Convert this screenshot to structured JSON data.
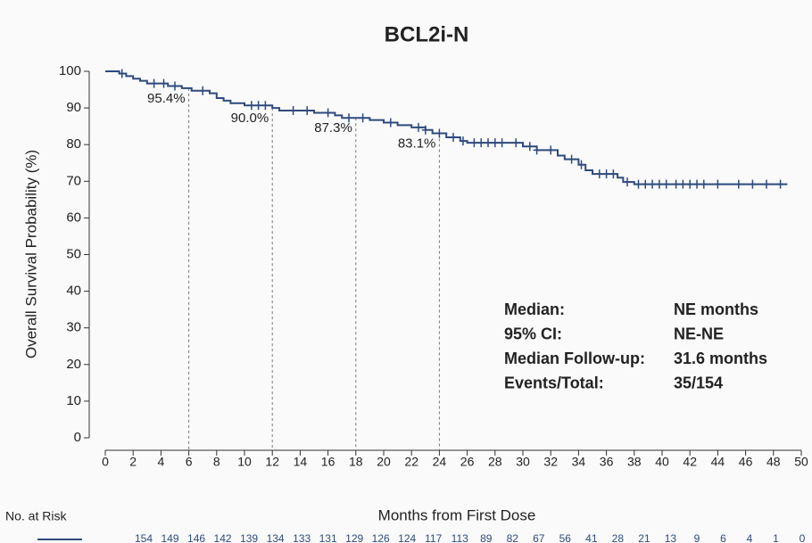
{
  "chart_data": {
    "type": "step",
    "title": "BCL2i-N",
    "y_label": "Overall Survival Probability (%)",
    "x_label": "Months from First Dose",
    "color": "#2e4a7d",
    "x": [
      0,
      1,
      1.5,
      2,
      2.5,
      3,
      4.5,
      5.5,
      6.2,
      7.5,
      8,
      8.5,
      9,
      10,
      12,
      12.5,
      15,
      16.5,
      17,
      19,
      20,
      21,
      22,
      23,
      23.5,
      24.5,
      25.5,
      26,
      29,
      30,
      31,
      32.5,
      33,
      34,
      34.5,
      35,
      36.8,
      37.2,
      38,
      49
    ],
    "values": [
      100,
      99.4,
      98.7,
      98,
      97.4,
      96.7,
      96,
      95.4,
      94.7,
      94,
      92.7,
      92,
      91.3,
      90.7,
      90,
      89.3,
      88.7,
      88,
      87.3,
      86.7,
      86,
      85.3,
      84.7,
      84,
      83.1,
      82,
      81,
      80.5,
      80.5,
      79.5,
      78.5,
      77,
      76,
      74.5,
      73,
      72,
      71,
      69.8,
      69.2,
      69.2
    ],
    "censor_times": [
      1.2,
      3.5,
      4.2,
      5,
      7,
      10.5,
      11,
      11.5,
      13.5,
      14.5,
      16,
      17.5,
      18.5,
      20.5,
      22.5,
      23,
      24,
      25,
      25.7,
      26.5,
      27,
      27.5,
      28,
      28.5,
      29.5,
      30.5,
      31,
      32,
      33.5,
      34.2,
      35.5,
      36,
      36.5,
      37.5,
      38.3,
      38.8,
      39.3,
      39.8,
      40.3,
      41,
      41.5,
      42,
      42.5,
      43,
      44,
      45.5,
      46.5,
      47.5,
      48.5
    ],
    "xlim": [
      0,
      50
    ],
    "xticks": [
      0,
      2,
      4,
      6,
      8,
      10,
      12,
      14,
      16,
      18,
      20,
      22,
      24,
      26,
      28,
      30,
      32,
      34,
      36,
      38,
      40,
      42,
      44,
      46,
      48,
      50
    ],
    "ylim": [
      0,
      100
    ],
    "yticks": [
      0,
      10,
      20,
      30,
      40,
      50,
      60,
      70,
      80,
      90,
      100
    ],
    "landmarks": [
      {
        "x": 6,
        "value": 95.4,
        "label": "95.4%"
      },
      {
        "x": 12,
        "value": 90.0,
        "label": "90.0%"
      },
      {
        "x": 18,
        "value": 87.3,
        "label": "87.3%"
      },
      {
        "x": 24,
        "value": 83.1,
        "label": "83.1%"
      }
    ],
    "summary": [
      [
        "Median:",
        "NE months"
      ],
      [
        "95% CI:",
        "NE-NE"
      ],
      [
        "Median Follow-up:",
        "31.6 months"
      ],
      [
        "Events/Total:",
        "35/154"
      ]
    ],
    "risk_title": "No. at Risk",
    "at_risk": [
      154,
      149,
      146,
      142,
      139,
      134,
      133,
      131,
      129,
      126,
      124,
      117,
      113,
      89,
      82,
      67,
      56,
      41,
      28,
      21,
      13,
      9,
      6,
      4,
      1,
      0
    ]
  }
}
